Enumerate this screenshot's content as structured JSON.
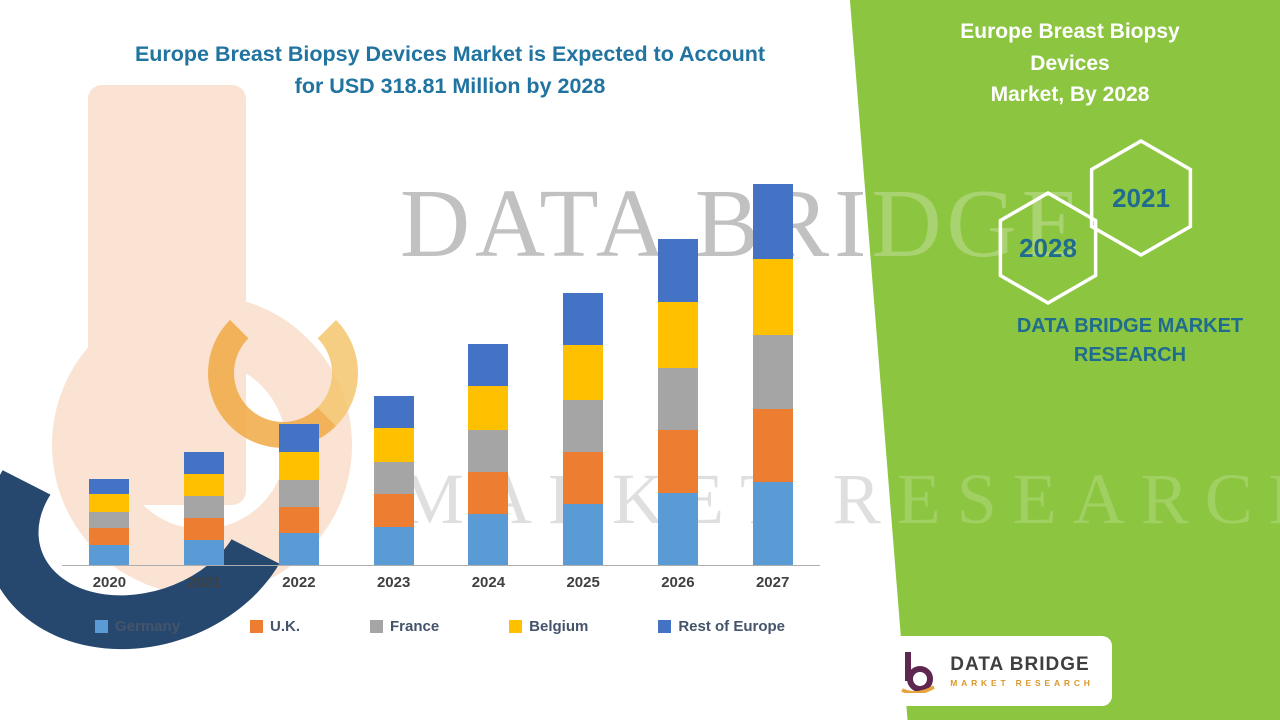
{
  "colors": {
    "panel_green": "#8CC540",
    "title_teal": "#2173A0",
    "hex_label_teal": "#1F6C8F",
    "logo_orange": "#D9992E",
    "logo_purple": "#5E2750"
  },
  "main_title": {
    "line1": "Europe Breast Biopsy Devices Market is Expected to Account",
    "line2": "for USD 318.81 Million by 2028"
  },
  "side_panel": {
    "title_line1": "Europe Breast Biopsy Devices",
    "title_line2": "Market, By 2028",
    "hexagon_left_label": "2028",
    "hexagon_right_label": "2021",
    "brand_line1": "DATA BRIDGE MARKET",
    "brand_line2": "RESEARCH"
  },
  "watermark": {
    "line1": "DATA BRIDGE",
    "line2": "MARKET RESEARCH"
  },
  "logo": {
    "name": "DATA BRIDGE",
    "subtitle": "MARKET RESEARCH"
  },
  "chart_data": {
    "type": "bar",
    "stacked": true,
    "title": "Europe Breast Biopsy Devices Market is Expected to Account for USD 318.81 Million by 2028",
    "unit": "USD Million",
    "categories": [
      "2020",
      "2021",
      "2022",
      "2023",
      "2024",
      "2025",
      "2026",
      "2027"
    ],
    "series": [
      {
        "name": "Germany",
        "color": "#5B9BD5",
        "values": [
          16,
          20,
          25,
          30,
          40,
          48,
          57,
          65
        ]
      },
      {
        "name": "U.K.",
        "color": "#ED7D31",
        "values": [
          13,
          17,
          21,
          26,
          33,
          41,
          49,
          58
        ]
      },
      {
        "name": "France",
        "color": "#A5A5A5",
        "values": [
          13,
          17,
          21,
          25,
          33,
          41,
          49,
          58
        ]
      },
      {
        "name": "Belgium",
        "color": "#FFC000",
        "values": [
          14,
          18,
          22,
          27,
          35,
          43,
          52,
          60
        ]
      },
      {
        "name": "Rest of Europe",
        "color": "#4472C4",
        "values": [
          12,
          17,
          22,
          25,
          33,
          41,
          50,
          59
        ]
      }
    ],
    "totals": [
      68,
      89,
      111,
      133,
      174,
      214,
      257,
      300
    ],
    "ylim": [
      0,
      320
    ],
    "grid": false,
    "legend_position": "bottom",
    "forecast_note_year": "2028",
    "forecast_value": "USD 318.81 Million"
  }
}
